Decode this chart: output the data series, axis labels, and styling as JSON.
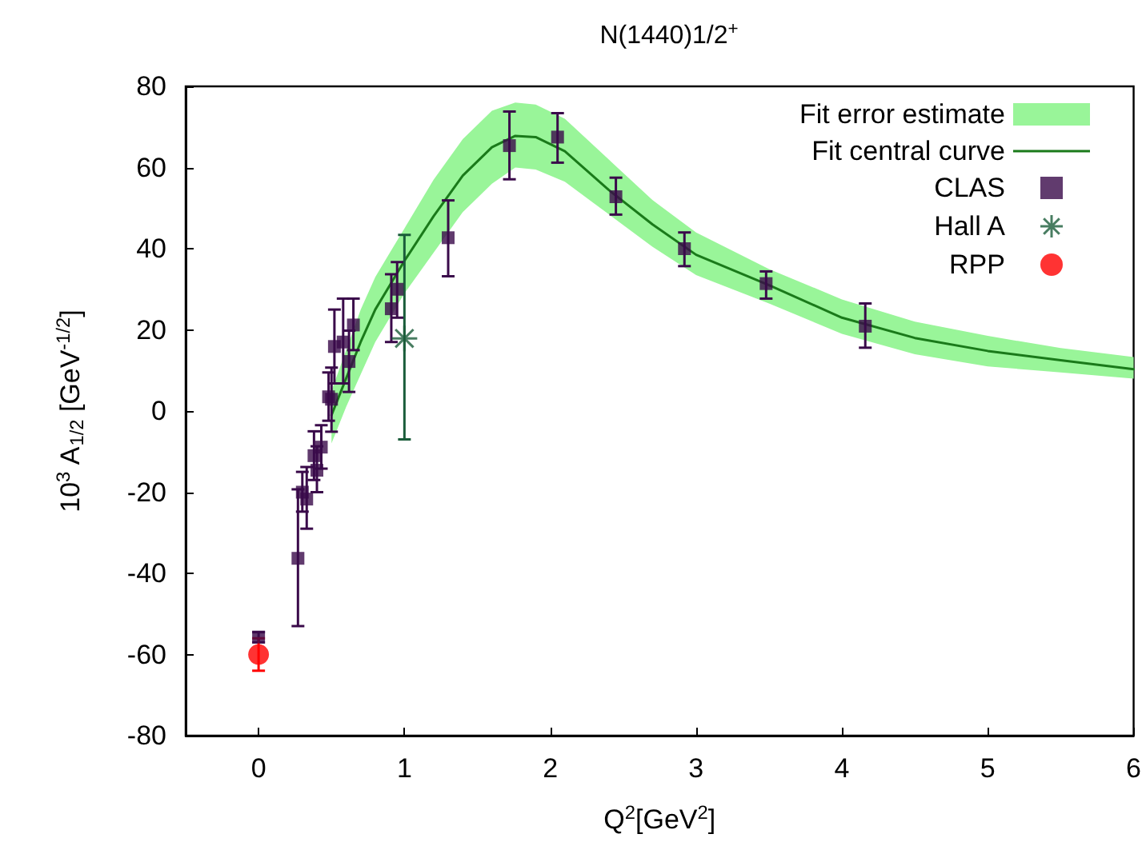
{
  "chart_data": {
    "type": "scatter",
    "title": "N(1440)1/2$^{+}$",
    "xlabel": "Q$^{2}$[GeV$^{2}$]",
    "ylabel": "10$^{3}$ A$_{1/2}$ [GeV$^{-1/2}$]",
    "xlim": [
      -0.5,
      6
    ],
    "xticks": [
      0,
      1,
      2,
      3,
      4,
      5,
      6
    ],
    "ylim": [
      -80,
      80
    ],
    "yticks": [
      -80,
      -60,
      -40,
      -20,
      0,
      20,
      40,
      60,
      80
    ],
    "grid": false,
    "legend": "top right",
    "series": [
      {
        "name": "Fit error estimate",
        "type": "area",
        "color": "#99f599"
      },
      {
        "name": "Fit central curve",
        "type": "line",
        "color": "#1a7a1a",
        "marker": "none",
        "x": [
          0.5,
          0.6,
          0.7,
          0.8,
          0.9,
          1.0,
          1.2,
          1.4,
          1.6,
          1.76,
          1.9,
          2.1,
          2.4,
          2.7,
          3.0,
          3.5,
          4.0,
          4.5,
          5.0,
          5.5,
          6.0
        ],
        "values": [
          -1,
          8,
          17,
          25,
          31,
          37,
          48,
          58,
          65,
          67.8,
          67.5,
          64,
          54.5,
          46,
          38.5,
          31,
          23,
          18,
          14.8,
          12.5,
          10.3
        ],
        "lower": [
          -8,
          1,
          9,
          17,
          23,
          29,
          39,
          49,
          56,
          60,
          59.5,
          56.5,
          48.5,
          40.5,
          33.5,
          26.5,
          19,
          14,
          11,
          9.5,
          8
        ],
        "upper": [
          5,
          15,
          25,
          33,
          39,
          45,
          57,
          67,
          74,
          76,
          75.5,
          72,
          62,
          52,
          44,
          35,
          27.5,
          22,
          18.5,
          15.5,
          13.3
        ]
      },
      {
        "name": "CLAS",
        "color": "#3a0a4a",
        "marker": "square",
        "x": [
          0,
          0.27,
          0.3,
          0.33,
          0.38,
          0.4,
          0.43,
          0.48,
          0.5,
          0.52,
          0.58,
          0.62,
          0.65,
          0.91,
          0.95,
          1.3,
          1.72,
          2.05,
          2.45,
          2.92,
          3.48,
          4.16
        ],
        "values": [
          -55.7,
          -36.3,
          -20,
          -21.7,
          -11,
          -14.6,
          -8.9,
          3.5,
          2.9,
          15.9,
          17,
          12.2,
          21.2,
          25.2,
          30,
          42.7,
          65.4,
          67.5,
          52.8,
          40,
          31.4,
          20.9
        ],
        "errors": [
          [
            -57,
            -54.5
          ],
          [
            -53,
            -19.3
          ],
          [
            -24.8,
            -15
          ],
          [
            -29,
            -13.8
          ],
          [
            -17,
            -5
          ],
          [
            -20,
            -8.7
          ],
          [
            -14.2,
            -3.5
          ],
          [
            -2.4,
            9.5
          ],
          [
            -5.1,
            10.7
          ],
          [
            6.8,
            25
          ],
          [
            6.8,
            27.7
          ],
          [
            4.7,
            19.8
          ],
          [
            15,
            27.7
          ],
          [
            17,
            33.7
          ],
          [
            23,
            36.7
          ],
          [
            33.2,
            51.9
          ],
          [
            57.1,
            73.8
          ],
          [
            61.2,
            73.4
          ],
          [
            48.4,
            57.5
          ],
          [
            35.7,
            44
          ],
          [
            27.7,
            34.4
          ],
          [
            15.6,
            26.5
          ]
        ]
      },
      {
        "name": "Hall A",
        "color": "#1a5c3a",
        "marker": "cross",
        "x": [
          1.0
        ],
        "values": [
          17.9
        ],
        "errors": [
          [
            -7,
            43.4
          ]
        ]
      },
      {
        "name": "RPP",
        "color": "#ff0000",
        "marker": "circle",
        "x": [
          0
        ],
        "values": [
          -60
        ],
        "errors": [
          4
        ]
      }
    ]
  }
}
